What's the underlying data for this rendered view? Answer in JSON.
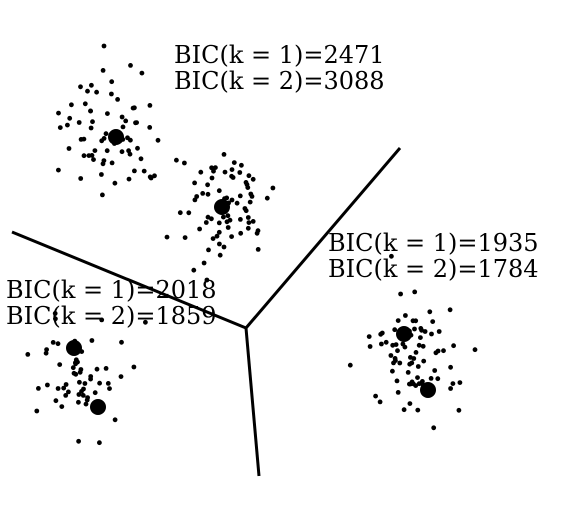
{
  "colors": {
    "ink": "#000000",
    "background": "#ffffff"
  },
  "regions": [
    {
      "id": "top",
      "bic_k1": "BIC(k = 1)=2471",
      "bic_k2": "BIC(k = 2)=3088",
      "clusters": 2
    },
    {
      "id": "right",
      "bic_k1": "BIC(k = 1)=1935",
      "bic_k2": "BIC(k = 2)=1784",
      "clusters": 1
    },
    {
      "id": "left",
      "bic_k1": "BIC(k = 1)=2018",
      "bic_k2": "BIC(k = 2)=1859",
      "clusters": 1
    }
  ],
  "center_markers": 6
}
